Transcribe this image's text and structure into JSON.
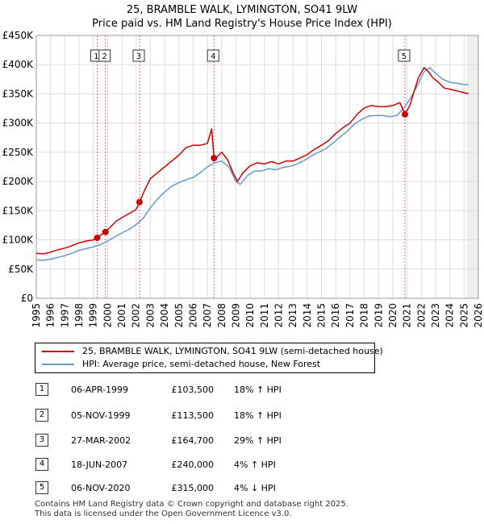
{
  "title_line1": "25, BRAMBLE WALK, LYMINGTON, SO41 9LW",
  "title_line2": "Price paid vs. HM Land Registry's House Price Index (HPI)",
  "colors": {
    "property": "#cc0000",
    "hpi": "#6699cc",
    "sale_marker": "#cc0000",
    "grid": "#dddddd",
    "future_shade": "#dddddd",
    "vline": "#cc0000"
  },
  "legend": {
    "property_label": "25, BRAMBLE WALK, LYMINGTON, SO41 9LW (semi-detached house)",
    "hpi_label": "HPI: Average price, semi-detached house, New Forest"
  },
  "sales": [
    {
      "num": "1",
      "date": "06-APR-1999",
      "price": "£103,500",
      "hpi": "18% ↑ HPI"
    },
    {
      "num": "2",
      "date": "05-NOV-1999",
      "price": "£113,500",
      "hpi": "18% ↑ HPI"
    },
    {
      "num": "3",
      "date": "27-MAR-2002",
      "price": "£164,700",
      "hpi": "29% ↑ HPI"
    },
    {
      "num": "4",
      "date": "18-JUN-2007",
      "price": "£240,000",
      "hpi": "4% ↑ HPI"
    },
    {
      "num": "5",
      "date": "06-NOV-2020",
      "price": "£315,000",
      "hpi": "4% ↓ HPI"
    }
  ],
  "footer_line1": "Contains HM Land Registry data © Crown copyright and database right 2025.",
  "footer_line2": "This data is licensed under the Open Government Licence v3.0.",
  "chart_data": {
    "type": "line",
    "title": "25, BRAMBLE WALK, LYMINGTON, SO41 9LW — Price paid vs. HM Land Registry's House Price Index (HPI)",
    "xlabel": "",
    "ylabel": "",
    "xlim": [
      1995,
      2026
    ],
    "ylim": [
      0,
      450000
    ],
    "x_ticks": [
      1995,
      1996,
      1997,
      1998,
      1999,
      2000,
      2001,
      2002,
      2003,
      2004,
      2005,
      2006,
      2007,
      2008,
      2009,
      2010,
      2011,
      2012,
      2013,
      2014,
      2015,
      2016,
      2017,
      2018,
      2019,
      2020,
      2021,
      2022,
      2023,
      2024,
      2025,
      2026
    ],
    "y_ticks": [
      0,
      50000,
      100000,
      150000,
      200000,
      250000,
      300000,
      350000,
      400000,
      450000
    ],
    "y_tick_labels": [
      "£0",
      "£50K",
      "£100K",
      "£150K",
      "£200K",
      "£250K",
      "£300K",
      "£350K",
      "£400K",
      "£450K"
    ],
    "grid": true,
    "future_shade_from": 2025.2,
    "series": [
      {
        "name": "25, BRAMBLE WALK, LYMINGTON, SO41 9LW (semi-detached house)",
        "color": "#cc0000",
        "x": [
          1995.0,
          1995.5,
          1996.0,
          1996.5,
          1997.0,
          1997.5,
          1998.0,
          1998.5,
          1999.0,
          1999.27,
          1999.5,
          1999.85,
          2000.2,
          2000.6,
          2001.0,
          2001.5,
          2002.0,
          2002.24,
          2002.6,
          2003.0,
          2003.5,
          2004.0,
          2004.5,
          2005.0,
          2005.5,
          2006.0,
          2006.5,
          2007.0,
          2007.3,
          2007.46,
          2007.6,
          2008.0,
          2008.4,
          2008.8,
          2009.1,
          2009.5,
          2010.0,
          2010.5,
          2011.0,
          2011.5,
          2012.0,
          2012.5,
          2013.0,
          2013.5,
          2014.0,
          2014.5,
          2015.0,
          2015.5,
          2016.0,
          2016.5,
          2017.0,
          2017.5,
          2018.0,
          2018.5,
          2019.0,
          2019.5,
          2020.0,
          2020.5,
          2020.85,
          2021.2,
          2021.5,
          2021.8,
          2022.2,
          2022.5,
          2022.8,
          2023.2,
          2023.6,
          2024.0,
          2024.5,
          2025.0,
          2025.3
        ],
        "y": [
          77000,
          76000,
          79000,
          83000,
          86000,
          90000,
          95000,
          98000,
          100000,
          103500,
          108000,
          113500,
          122000,
          132000,
          138000,
          145000,
          152000,
          164700,
          185000,
          205000,
          215000,
          225000,
          235000,
          245000,
          258000,
          262000,
          262000,
          265000,
          290000,
          240000,
          240000,
          250000,
          238000,
          215000,
          200000,
          215000,
          227000,
          232000,
          230000,
          234000,
          230000,
          235000,
          235000,
          240000,
          246000,
          255000,
          262000,
          270000,
          282000,
          292000,
          300000,
          315000,
          326000,
          330000,
          328000,
          328000,
          330000,
          335000,
          315000,
          330000,
          355000,
          378000,
          395000,
          388000,
          378000,
          370000,
          360000,
          358000,
          355000,
          352000,
          350000
        ]
      },
      {
        "name": "HPI: Average price, semi-detached house, New Forest",
        "color": "#6699cc",
        "x": [
          1995.0,
          1995.5,
          1996.0,
          1996.5,
          1997.0,
          1997.5,
          1998.0,
          1998.5,
          1999.0,
          1999.5,
          2000.0,
          2000.5,
          2001.0,
          2001.5,
          2002.0,
          2002.5,
          2003.0,
          2003.5,
          2004.0,
          2004.5,
          2005.0,
          2005.5,
          2006.0,
          2006.5,
          2007.0,
          2007.5,
          2008.0,
          2008.5,
          2009.0,
          2009.3,
          2009.8,
          2010.3,
          2010.8,
          2011.3,
          2011.8,
          2012.3,
          2012.8,
          2013.3,
          2013.8,
          2014.3,
          2014.8,
          2015.3,
          2015.8,
          2016.3,
          2016.8,
          2017.3,
          2017.8,
          2018.3,
          2018.8,
          2019.3,
          2019.8,
          2020.3,
          2020.85,
          2021.3,
          2021.8,
          2022.2,
          2022.6,
          2023.0,
          2023.5,
          2024.0,
          2024.5,
          2025.0,
          2025.3
        ],
        "y": [
          66000,
          65000,
          67000,
          70000,
          73000,
          77000,
          82000,
          85000,
          88000,
          92000,
          98000,
          105000,
          112000,
          118000,
          126000,
          137000,
          155000,
          170000,
          182000,
          192000,
          198000,
          203000,
          207000,
          215000,
          225000,
          232000,
          235000,
          225000,
          200000,
          195000,
          210000,
          218000,
          218000,
          222000,
          220000,
          224000,
          226000,
          230000,
          236000,
          244000,
          250000,
          256000,
          266000,
          276000,
          286000,
          298000,
          306000,
          312000,
          313000,
          313000,
          311000,
          313000,
          328000,
          345000,
          368000,
          388000,
          395000,
          385000,
          375000,
          370000,
          368000,
          366000,
          366000
        ]
      }
    ],
    "sales_points": [
      {
        "label": "1",
        "x": 1999.27,
        "y": 103500
      },
      {
        "label": "2",
        "x": 1999.85,
        "y": 113500
      },
      {
        "label": "3",
        "x": 2002.24,
        "y": 164700
      },
      {
        "label": "4",
        "x": 2007.46,
        "y": 240000
      },
      {
        "label": "5",
        "x": 2020.85,
        "y": 315000
      }
    ]
  }
}
